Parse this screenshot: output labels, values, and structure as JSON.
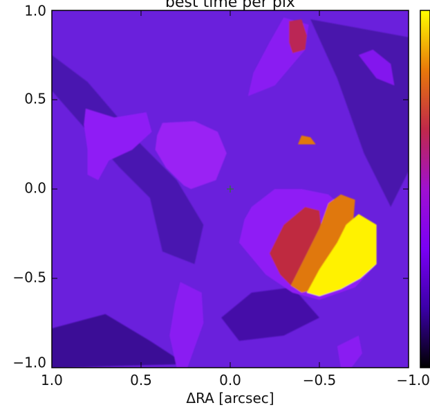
{
  "chart_data": {
    "type": "heatmap",
    "title": "best time per pix",
    "xlabel": "ΔRA [arcsec]",
    "ylabel": "",
    "xlim": [
      1.0,
      -1.0
    ],
    "ylim": [
      -1.0,
      1.0
    ],
    "x_ticks": [
      1.0,
      0.5,
      0.0,
      -0.5,
      -1.0
    ],
    "x_tick_labels": [
      "1.0",
      "0.5",
      "0.0",
      "−0.5",
      "−1.0"
    ],
    "y_ticks": [
      1.0,
      0.5,
      0.0,
      -0.5,
      -1.0
    ],
    "y_tick_labels": [
      "1.0",
      "0.5",
      "0.0",
      "−0.5",
      "−1.0"
    ],
    "colormap": "gnuplot",
    "colormap_stops": [
      "#000000",
      "#3b00a8",
      "#7a00f5",
      "#a010d0",
      "#c0284a",
      "#e8780a",
      "#ffff00"
    ],
    "background_color": "#6a20dc",
    "center_marker": {
      "x": 0.0,
      "y": 0.0,
      "symbol": "+",
      "color": "#2a7a2a"
    },
    "regions": [
      {
        "level": "dark",
        "color": "#4a14b0",
        "polygon": [
          [
            1.0,
            0.55
          ],
          [
            0.78,
            0.3
          ],
          [
            0.62,
            0.12
          ],
          [
            0.45,
            -0.05
          ],
          [
            0.38,
            -0.35
          ],
          [
            0.2,
            -0.42
          ],
          [
            0.15,
            -0.2
          ],
          [
            0.3,
            0.05
          ],
          [
            0.5,
            0.25
          ],
          [
            0.8,
            0.6
          ],
          [
            1.0,
            0.75
          ]
        ]
      },
      {
        "level": "dark",
        "color": "#4510a8",
        "polygon": [
          [
            0.05,
            -0.72
          ],
          [
            -0.12,
            -0.58
          ],
          [
            -0.35,
            -0.55
          ],
          [
            -0.5,
            -0.72
          ],
          [
            -0.3,
            -0.82
          ],
          [
            -0.05,
            -0.85
          ]
        ]
      },
      {
        "level": "dark",
        "color": "#3a0c96",
        "polygon": [
          [
            1.0,
            -0.78
          ],
          [
            0.7,
            -0.7
          ],
          [
            0.45,
            -0.85
          ],
          [
            0.25,
            -0.98
          ],
          [
            1.0,
            -1.0
          ]
        ]
      },
      {
        "level": "dark",
        "color": "#4814ac",
        "polygon": [
          [
            -0.45,
            0.95
          ],
          [
            -0.6,
            0.62
          ],
          [
            -0.75,
            0.2
          ],
          [
            -0.9,
            -0.1
          ],
          [
            -1.0,
            0.1
          ],
          [
            -1.0,
            0.85
          ]
        ]
      },
      {
        "level": "purple",
        "color": "#8f1ef5",
        "polygon": [
          [
            0.81,
            0.45
          ],
          [
            0.65,
            0.4
          ],
          [
            0.47,
            0.43
          ],
          [
            0.44,
            0.32
          ],
          [
            0.55,
            0.22
          ],
          [
            0.68,
            0.16
          ],
          [
            0.74,
            0.05
          ],
          [
            0.8,
            0.08
          ],
          [
            0.8,
            0.22
          ],
          [
            0.82,
            0.36
          ]
        ]
      },
      {
        "level": "purple",
        "color": "#9a22f4",
        "polygon": [
          [
            0.38,
            0.37
          ],
          [
            0.2,
            0.38
          ],
          [
            0.07,
            0.32
          ],
          [
            0.02,
            0.2
          ],
          [
            0.08,
            0.05
          ],
          [
            0.22,
            0.0
          ],
          [
            0.26,
            0.02
          ],
          [
            0.36,
            0.12
          ],
          [
            0.42,
            0.22
          ],
          [
            0.41,
            0.3
          ]
        ]
      },
      {
        "level": "purple",
        "color": "#8a1ef2",
        "polygon": [
          [
            -0.1,
            0.52
          ],
          [
            -0.25,
            0.58
          ],
          [
            -0.42,
            0.78
          ],
          [
            -0.44,
            0.92
          ],
          [
            -0.3,
            0.96
          ],
          [
            -0.22,
            0.82
          ],
          [
            -0.13,
            0.65
          ]
        ]
      },
      {
        "level": "purple",
        "color": "#8318ee",
        "polygon": [
          [
            -0.72,
            0.75
          ],
          [
            -0.82,
            0.62
          ],
          [
            -0.92,
            0.58
          ],
          [
            -0.9,
            0.7
          ],
          [
            -0.8,
            0.78
          ]
        ]
      },
      {
        "level": "purple",
        "color": "#8a1ef2",
        "polygon": [
          [
            0.28,
            -0.52
          ],
          [
            0.16,
            -0.58
          ],
          [
            0.15,
            -0.75
          ],
          [
            0.24,
            -1.0
          ],
          [
            0.3,
            -1.0
          ],
          [
            0.34,
            -0.82
          ],
          [
            0.31,
            -0.64
          ]
        ]
      },
      {
        "level": "purple",
        "color": "#8a1ef2",
        "polygon": [
          [
            -0.6,
            -0.88
          ],
          [
            -0.72,
            -0.82
          ],
          [
            -0.74,
            -0.92
          ],
          [
            -0.68,
            -1.0
          ],
          [
            -0.62,
            -1.0
          ]
        ]
      },
      {
        "level": "purple",
        "color": "#8f1ef5",
        "polygon": [
          [
            -0.25,
            0.0
          ],
          [
            -0.4,
            0.0
          ],
          [
            -0.55,
            -0.03
          ],
          [
            -0.63,
            -0.1
          ],
          [
            -0.7,
            -0.2
          ],
          [
            -0.82,
            -0.2
          ],
          [
            -0.82,
            -0.42
          ],
          [
            -0.7,
            -0.55
          ],
          [
            -0.5,
            -0.62
          ],
          [
            -0.35,
            -0.58
          ],
          [
            -0.2,
            -0.48
          ],
          [
            -0.05,
            -0.3
          ],
          [
            -0.08,
            -0.17
          ],
          [
            -0.12,
            -0.1
          ]
        ]
      },
      {
        "level": "red",
        "color": "#bb2854",
        "polygon": [
          [
            -0.33,
            0.94
          ],
          [
            -0.4,
            0.95
          ],
          [
            -0.43,
            0.86
          ],
          [
            -0.42,
            0.78
          ],
          [
            -0.35,
            0.76
          ],
          [
            -0.33,
            0.82
          ]
        ]
      },
      {
        "level": "red",
        "color": "#bf2a40",
        "polygon": [
          [
            -0.42,
            -0.1
          ],
          [
            -0.5,
            -0.12
          ],
          [
            -0.52,
            -0.3
          ],
          [
            -0.42,
            -0.5
          ],
          [
            -0.35,
            -0.55
          ],
          [
            -0.28,
            -0.48
          ],
          [
            -0.22,
            -0.36
          ],
          [
            -0.3,
            -0.2
          ]
        ]
      },
      {
        "level": "orange",
        "color": "#e0780a",
        "polygon": [
          [
            -0.55,
            -0.08
          ],
          [
            -0.62,
            -0.03
          ],
          [
            -0.7,
            -0.06
          ],
          [
            -0.68,
            -0.3
          ],
          [
            -0.6,
            -0.45
          ],
          [
            -0.5,
            -0.56
          ],
          [
            -0.4,
            -0.58
          ],
          [
            -0.34,
            -0.54
          ],
          [
            -0.42,
            -0.38
          ],
          [
            -0.5,
            -0.22
          ]
        ]
      },
      {
        "level": "orange",
        "color": "#e0780a",
        "polygon": [
          [
            -0.4,
            0.3
          ],
          [
            -0.45,
            0.29
          ],
          [
            -0.48,
            0.25
          ],
          [
            -0.38,
            0.25
          ]
        ]
      },
      {
        "level": "yellow",
        "color": "#fff200",
        "polygon": [
          [
            -0.72,
            -0.14
          ],
          [
            -0.82,
            -0.2
          ],
          [
            -0.82,
            -0.42
          ],
          [
            -0.73,
            -0.5
          ],
          [
            -0.62,
            -0.56
          ],
          [
            -0.5,
            -0.6
          ],
          [
            -0.43,
            -0.58
          ],
          [
            -0.5,
            -0.45
          ],
          [
            -0.6,
            -0.3
          ],
          [
            -0.65,
            -0.2
          ]
        ]
      }
    ]
  }
}
